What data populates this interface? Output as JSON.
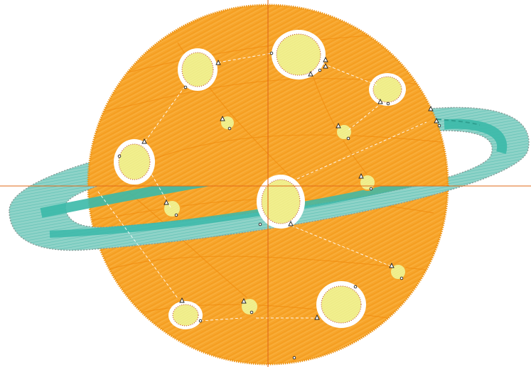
{
  "design": {
    "type": "embroidery-design-preview",
    "subject": "planet-with-ring",
    "colors": {
      "planet_fill": "#f7a52b",
      "planet_stitch": "#f39a1c",
      "planet_edge": "#ee9415",
      "ring_fill": "#8fd3c8",
      "ring_stitch": "#3bb9a9",
      "ring_edge": "#8a9d99",
      "crater_fill": "#f1ef8e",
      "crater_border": "#ffffff",
      "crater_stitch": "#c0392b",
      "axis": "#e06a1a",
      "travel": "#ffffff"
    },
    "crater_count_large": 8,
    "crater_count_small": 7
  },
  "view": {
    "axes": "crosshair",
    "grid": false
  }
}
